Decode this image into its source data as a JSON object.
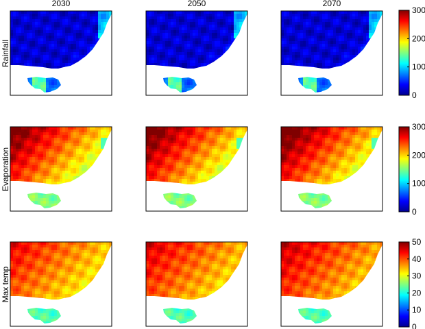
{
  "columns": [
    "2030",
    "2050",
    "2070"
  ],
  "rows": [
    {
      "label": "Rainfall",
      "colorbar_ticks": [
        "300",
        "200",
        "100",
        "0"
      ]
    },
    {
      "label": "Evaporation",
      "colorbar_ticks": [
        "300",
        "200",
        "100",
        "0"
      ]
    },
    {
      "label": "Max temp",
      "colorbar_ticks": [
        "50",
        "40",
        "30",
        "20",
        "10",
        "0"
      ]
    }
  ],
  "chart_data": [
    {
      "type": "heatmap",
      "variable": "Rainfall",
      "panels": [
        "2030",
        "2050",
        "2070"
      ],
      "colormap": "jet",
      "clim": [
        0,
        300
      ],
      "colorbar_ticks": [
        0,
        100,
        200,
        300
      ]
    },
    {
      "type": "heatmap",
      "variable": "Evaporation",
      "panels": [
        "2030",
        "2050",
        "2070"
      ],
      "colormap": "jet",
      "clim": [
        0,
        300
      ],
      "colorbar_ticks": [
        0,
        100,
        200,
        300
      ]
    },
    {
      "type": "heatmap",
      "variable": "Max temp",
      "panels": [
        "2030",
        "2050",
        "2070"
      ],
      "colormap": "jet",
      "clim": [
        0,
        50
      ],
      "colorbar_ticks": [
        0,
        10,
        20,
        30,
        40,
        50
      ]
    }
  ]
}
